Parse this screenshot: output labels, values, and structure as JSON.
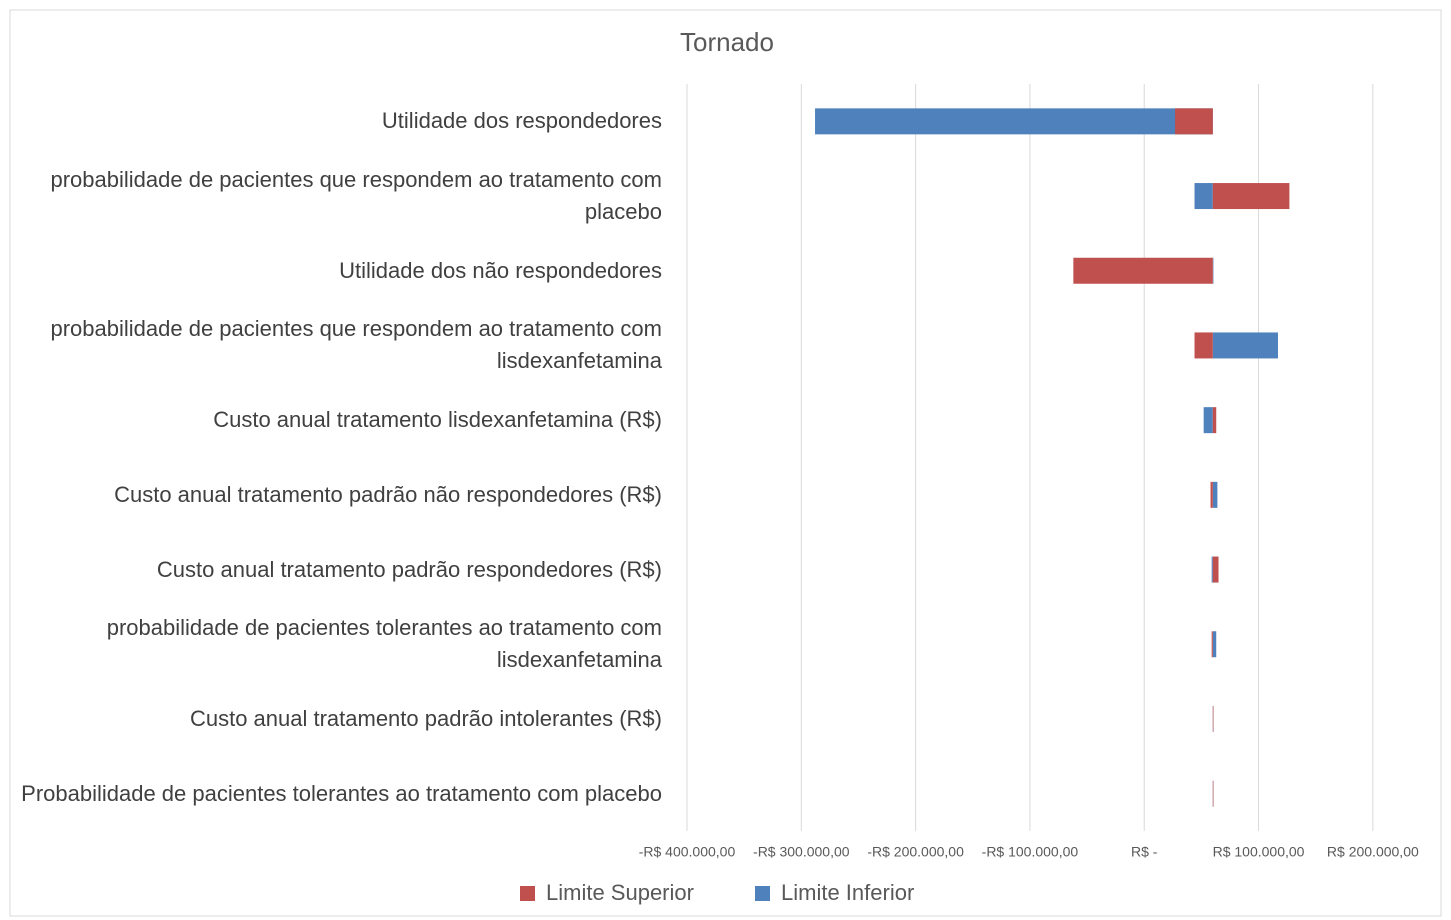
{
  "chart_data": {
    "type": "tornado",
    "title": "Tornado",
    "categories": [
      "Utilidade dos respondedores",
      "probabilidade de pacientes que respondem ao tratamento com placebo",
      "Utilidade dos não respondedores",
      "probabilidade de pacientes que respondem ao tratamento com lisdexanfetamina",
      "Custo anual tratamento lisdexanfetamina (R$)",
      "Custo anual tratamento padrão não respondedores (R$)",
      "Custo anual tratamento padrão respondedores (R$)",
      "probabilidade de pacientes tolerantes ao tratamento com lisdexanfetamina",
      "Custo anual tratamento padrão intolerantes (R$)",
      "Probabilidade de pacientes tolerantes ao tratamento com placebo"
    ],
    "base": 60000,
    "series": [
      {
        "name": "Limite Superior",
        "color": "#c0504d",
        "values": [
          27000,
          127000,
          -62000,
          44000,
          63000,
          58000,
          65000,
          59000,
          60000,
          60000
        ]
      },
      {
        "name": "Limite Inferior",
        "color": "#4f81bd",
        "values": [
          -288000,
          44000,
          60000,
          117000,
          52000,
          64000,
          59000,
          63000,
          60000,
          60000
        ]
      }
    ],
    "xlim": [
      -400000,
      250000
    ],
    "xticks": [
      {
        "value": -400000,
        "label": "-R$ 400.000,00"
      },
      {
        "value": -300000,
        "label": "-R$ 300.000,00"
      },
      {
        "value": -200000,
        "label": "-R$ 200.000,00"
      },
      {
        "value": -100000,
        "label": "-R$ 100.000,00"
      },
      {
        "value": 0,
        "label": "R$ -"
      },
      {
        "value": 100000,
        "label": "R$ 100.000,00"
      },
      {
        "value": 200000,
        "label": "R$ 200.000,00"
      }
    ],
    "grid": true
  }
}
